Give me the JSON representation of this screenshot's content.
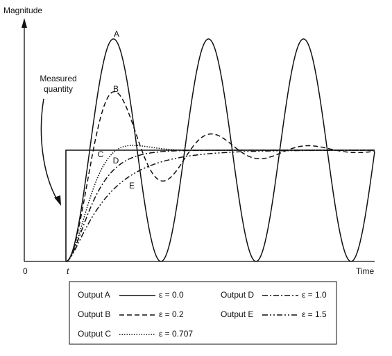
{
  "axes": {
    "y_label": "Magnitude",
    "x_label": "Time",
    "origin": "0",
    "step_time": "t"
  },
  "annotation": {
    "lines": [
      "Measured",
      "quantity"
    ]
  },
  "curve_labels": [
    "A",
    "B",
    "C",
    "D",
    "E"
  ],
  "legend": [
    {
      "output": "Output A",
      "label": "ε = 0.0",
      "damping": 0.0
    },
    {
      "output": "Output B",
      "label": "ε = 0.2",
      "damping": 0.2
    },
    {
      "output": "Output C",
      "label": "ε = 0.707",
      "damping": 0.707
    },
    {
      "output": "Output D",
      "label": "ε = 1.0",
      "damping": 1.0
    },
    {
      "output": "Output E",
      "label": "ε = 1.5",
      "damping": 1.5
    }
  ]
}
